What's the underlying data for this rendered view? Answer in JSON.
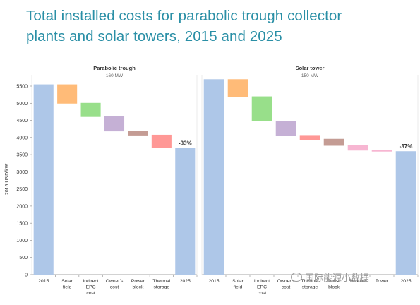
{
  "title": {
    "line1": "Total installed costs for parabolic trough collector",
    "line2": "plants and solar towers, 2015 and 2025"
  },
  "watermark": "国际能源小数据",
  "colors": {
    "total": "#aec7e8",
    "axis": "#888888",
    "grid": "#e6e6e6",
    "text": "#333333",
    "title": "#2a8fa6"
  },
  "chart_data": [
    {
      "type": "bar",
      "subtype": "waterfall",
      "panel_title": "Parabolic trough",
      "panel_subtitle": "160 MW",
      "ylabel": "2015 USD/kW",
      "ylim": [
        0,
        5500
      ],
      "yticks": [
        0,
        500,
        1000,
        1500,
        2000,
        2500,
        3000,
        3500,
        4000,
        4500,
        5000,
        5500
      ],
      "grid": false,
      "categories": [
        "2015",
        "Solar field",
        "Indirect EPC cost",
        "Owner's cost",
        "Power block",
        "Thermal storage",
        "2025"
      ],
      "category_labels": [
        [
          "2015"
        ],
        [
          "Solar",
          "field"
        ],
        [
          "Indirect",
          "EPC",
          "cost"
        ],
        [
          "Owner's",
          "cost"
        ],
        [
          "Power",
          "block"
        ],
        [
          "Thermal",
          "storage"
        ],
        [
          "2025"
        ]
      ],
      "bars": [
        {
          "kind": "total",
          "low": 0,
          "high": 5550,
          "color": "#aec7e8"
        },
        {
          "kind": "step",
          "low": 4990,
          "high": 5550,
          "color": "#ffbb78"
        },
        {
          "kind": "step",
          "low": 4600,
          "high": 5010,
          "color": "#98df8a"
        },
        {
          "kind": "step",
          "low": 4180,
          "high": 4620,
          "color": "#c5b0d5"
        },
        {
          "kind": "step",
          "low": 4060,
          "high": 4190,
          "color": "#c49c94"
        },
        {
          "kind": "step",
          "low": 3690,
          "high": 4080,
          "color": "#ff9896"
        },
        {
          "kind": "total",
          "low": 0,
          "high": 3700,
          "color": "#aec7e8"
        }
      ],
      "annotation": {
        "text": "-33%",
        "bar_index": 6
      }
    },
    {
      "type": "bar",
      "subtype": "waterfall",
      "panel_title": "Solar tower",
      "panel_subtitle": "150 MW",
      "ylim": [
        0,
        5500
      ],
      "grid": false,
      "categories": [
        "2015",
        "Solar field",
        "Indirect EPC cost",
        "Owner's cost",
        "Thermal storage",
        "Power block",
        "Receiver",
        "Tower",
        "2025"
      ],
      "category_labels": [
        [
          "2015"
        ],
        [
          "Solar",
          "field"
        ],
        [
          "Indirect",
          "EPC",
          "cost"
        ],
        [
          "Owner's",
          "cost"
        ],
        [
          "Thermal",
          "storage"
        ],
        [
          "Power",
          "block"
        ],
        [
          "Receiver"
        ],
        [
          "Tower"
        ],
        [
          "2025"
        ]
      ],
      "bars": [
        {
          "kind": "total",
          "low": 0,
          "high": 5700,
          "color": "#aec7e8"
        },
        {
          "kind": "step",
          "low": 5180,
          "high": 5700,
          "color": "#ffbb78"
        },
        {
          "kind": "step",
          "low": 4470,
          "high": 5200,
          "color": "#98df8a"
        },
        {
          "kind": "step",
          "low": 4050,
          "high": 4490,
          "color": "#c5b0d5"
        },
        {
          "kind": "step",
          "low": 3930,
          "high": 4070,
          "color": "#ff9896"
        },
        {
          "kind": "step",
          "low": 3760,
          "high": 3960,
          "color": "#c49c94"
        },
        {
          "kind": "step",
          "low": 3620,
          "high": 3770,
          "color": "#f7b6d2"
        },
        {
          "kind": "step",
          "low": 3590,
          "high": 3630,
          "color": "#f7b6d2"
        },
        {
          "kind": "total",
          "low": 0,
          "high": 3600,
          "color": "#aec7e8"
        }
      ],
      "annotation": {
        "text": "-37%",
        "bar_index": 8
      }
    }
  ]
}
